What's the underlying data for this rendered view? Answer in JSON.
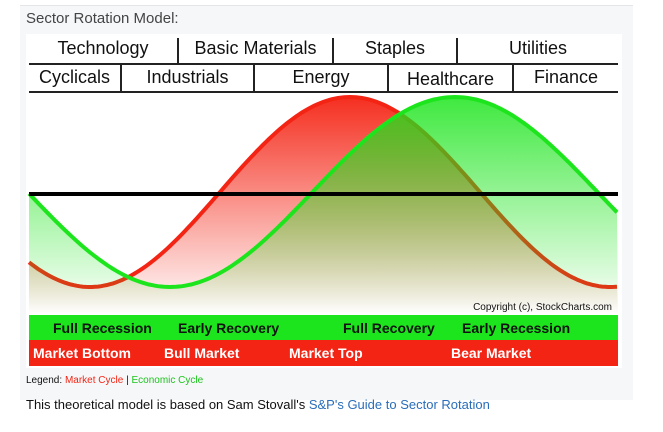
{
  "title": "Sector Rotation Model:",
  "sectors_top": [
    "Technology",
    "Basic Materials",
    "Staples",
    "Utilities"
  ],
  "sectors_bottom": [
    "Cyclicals",
    "Industrials",
    "Energy",
    "Healthcare",
    "Finance"
  ],
  "copyright": "Copyright (c), StockCharts.com",
  "economic_phases": [
    "Full Recession",
    "Early Recovery",
    "Full Recovery",
    "Early Recession"
  ],
  "market_phases": [
    "Market Bottom",
    "Bull Market",
    "Market Top",
    "Bear Market"
  ],
  "legend": {
    "label": "Legend:",
    "market": "Market Cycle",
    "separator": "|",
    "economic": "Economic Cycle"
  },
  "footer": {
    "text": "This theoretical model is based on Sam Stovall's ",
    "link": "S&P's Guide to Sector Rotation"
  },
  "colors": {
    "market": "#f42414",
    "economic": "#1de51d",
    "baseline": "#000000"
  }
}
